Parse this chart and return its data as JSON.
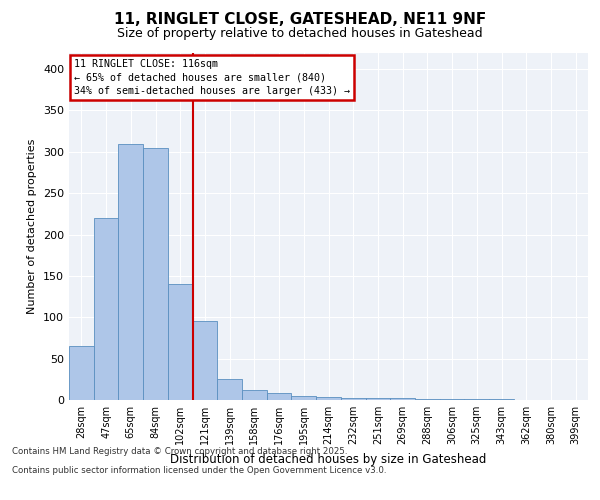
{
  "title_line1": "11, RINGLET CLOSE, GATESHEAD, NE11 9NF",
  "title_line2": "Size of property relative to detached houses in Gateshead",
  "xlabel": "Distribution of detached houses by size in Gateshead",
  "ylabel": "Number of detached properties",
  "categories": [
    "28sqm",
    "47sqm",
    "65sqm",
    "84sqm",
    "102sqm",
    "121sqm",
    "139sqm",
    "158sqm",
    "176sqm",
    "195sqm",
    "214sqm",
    "232sqm",
    "251sqm",
    "269sqm",
    "288sqm",
    "306sqm",
    "325sqm",
    "343sqm",
    "362sqm",
    "380sqm",
    "399sqm"
  ],
  "values": [
    65,
    220,
    310,
    305,
    140,
    95,
    25,
    12,
    8,
    5,
    4,
    3,
    2,
    2,
    1,
    1,
    1,
    1,
    0,
    0,
    0
  ],
  "bar_color": "#aec6e8",
  "bar_edge_color": "#5a8fc0",
  "vline_position": 4.5,
  "vline_color": "#cc0000",
  "annotation_title": "11 RINGLET CLOSE: 116sqm",
  "annotation_line2": "← 65% of detached houses are smaller (840)",
  "annotation_line3": "34% of semi-detached houses are larger (433) →",
  "annotation_box_edgecolor": "#cc0000",
  "ylim_max": 420,
  "footnote1": "Contains HM Land Registry data © Crown copyright and database right 2025.",
  "footnote2": "Contains public sector information licensed under the Open Government Licence v3.0.",
  "plot_bg": "#eef2f8",
  "fig_bg": "#ffffff",
  "grid_color": "#ffffff"
}
